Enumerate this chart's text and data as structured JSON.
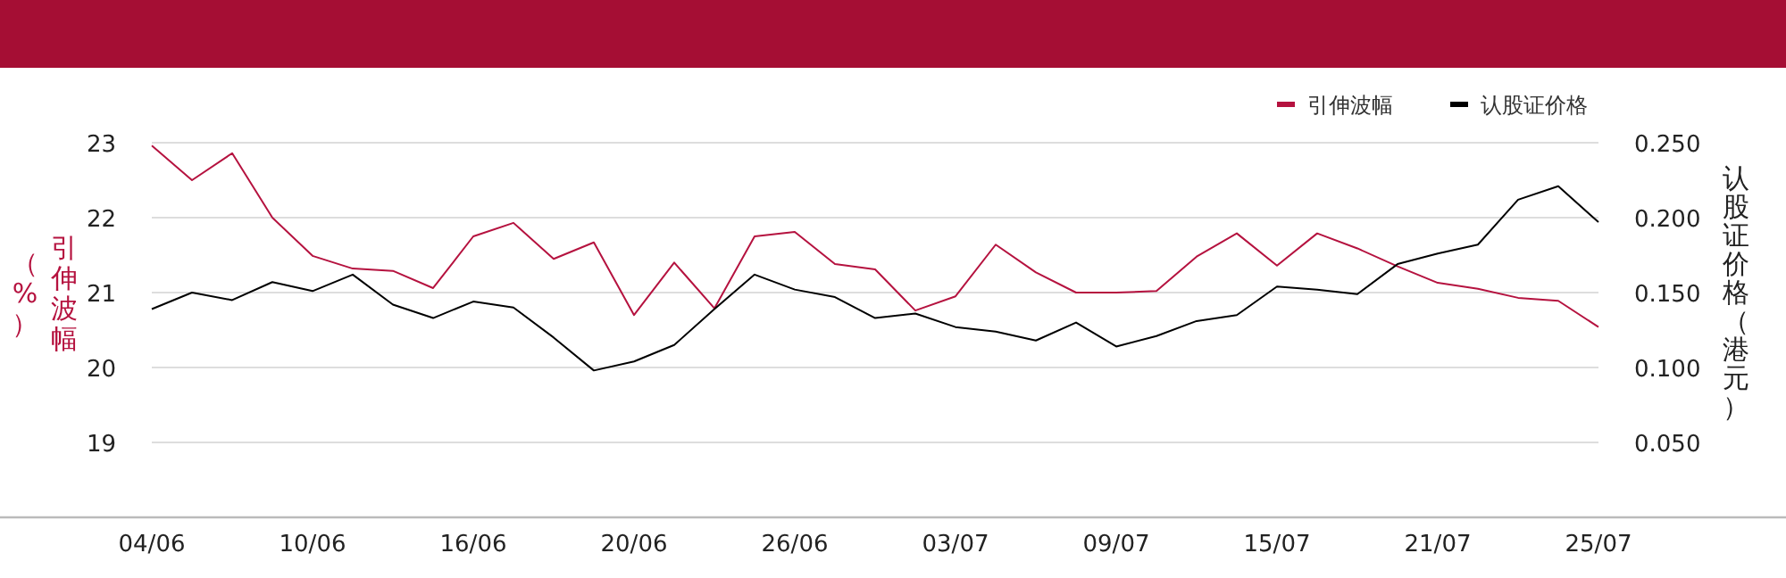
{
  "chart_data": {
    "type": "line",
    "categories": [
      "04/06",
      null,
      null,
      null,
      "10/06",
      null,
      null,
      null,
      "16/06",
      null,
      null,
      null,
      "20/06",
      null,
      null,
      null,
      "26/06",
      null,
      null,
      null,
      "03/07",
      null,
      null,
      null,
      "09/07",
      null,
      null,
      null,
      "15/07",
      null,
      null,
      null,
      "21/07",
      null,
      null,
      null,
      "25/07"
    ],
    "series": [
      {
        "name": "引伸波幅",
        "color": "#b5123f",
        "values": [
          22.96,
          22.5,
          22.86,
          22.0,
          21.49,
          21.32,
          21.29,
          21.06,
          21.75,
          21.93,
          21.45,
          21.67,
          20.7,
          21.4,
          20.79,
          21.75,
          21.81,
          21.38,
          21.31,
          20.76,
          20.95,
          21.64,
          21.27,
          21.0,
          21.0,
          21.02,
          21.48,
          21.79,
          21.36,
          21.79,
          21.59,
          21.35,
          21.13,
          21.05,
          20.93,
          20.89,
          20.54
        ]
      },
      {
        "name": "认股证价格",
        "color": "#000000",
        "axis": "y2",
        "values": [
          0.139,
          0.15,
          0.145,
          0.157,
          0.151,
          0.162,
          0.142,
          0.133,
          0.144,
          0.14,
          0.12,
          0.098,
          0.104,
          0.115,
          0.139,
          0.162,
          0.152,
          0.147,
          0.133,
          0.136,
          0.127,
          0.124,
          0.118,
          0.13,
          0.114,
          0.121,
          0.131,
          0.135,
          0.154,
          0.152,
          0.149,
          0.169,
          0.176,
          0.182,
          0.212,
          0.221,
          0.197
        ]
      }
    ],
    "ylabel": "引伸波幅（%）",
    "y2label": "认股证价格（港元）",
    "ylim": [
      18,
      23
    ],
    "yticks": [
      19,
      20,
      21,
      22,
      23
    ],
    "y2lim": [
      0,
      0.25
    ],
    "y2ticks": [
      {
        "value": 0.05,
        "label": "0.050"
      },
      {
        "value": 0.1,
        "label": "0.100"
      },
      {
        "value": 0.15,
        "label": "0.150"
      },
      {
        "value": 0.2,
        "label": "0.200"
      },
      {
        "value": 0.25,
        "label": "0.250"
      }
    ],
    "grid": "y",
    "legend": "top right",
    "marker": "none",
    "line_style": "solid"
  }
}
